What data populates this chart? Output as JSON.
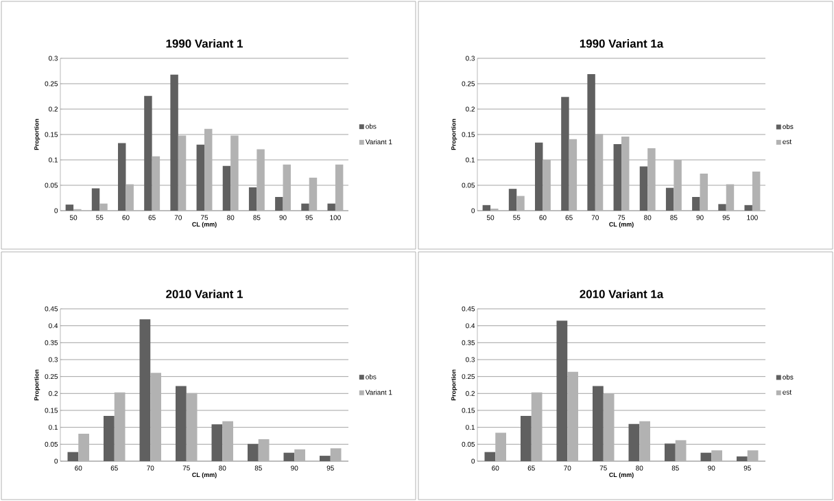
{
  "chart_data": [
    {
      "type": "bar",
      "title": "1990 Variant 1",
      "xlabel": "CL (mm)",
      "ylabel": "Proportion",
      "categories": [
        "50",
        "55",
        "60",
        "65",
        "70",
        "75",
        "80",
        "85",
        "90",
        "95",
        "100"
      ],
      "series": [
        {
          "name": "obs",
          "color": "#606060",
          "values": [
            0.012,
            0.044,
            0.133,
            0.226,
            0.268,
            0.13,
            0.088,
            0.046,
            0.027,
            0.014,
            0.014
          ]
        },
        {
          "name": "Variant 1",
          "color": "#b2b2b2",
          "values": [
            0.003,
            0.014,
            0.052,
            0.107,
            0.148,
            0.161,
            0.148,
            0.121,
            0.091,
            0.065,
            0.091
          ]
        }
      ],
      "ylim": [
        0,
        0.3
      ],
      "yticks": [
        0,
        0.05,
        0.1,
        0.15,
        0.2,
        0.25,
        0.3
      ],
      "grid": "y",
      "legend": "right"
    },
    {
      "type": "bar",
      "title": "1990 Variant 1a",
      "xlabel": "CL (mm)",
      "ylabel": "Proportion",
      "categories": [
        "50",
        "55",
        "60",
        "65",
        "70",
        "75",
        "80",
        "85",
        "90",
        "95",
        "100"
      ],
      "series": [
        {
          "name": "obs",
          "color": "#606060",
          "values": [
            0.011,
            0.043,
            0.134,
            0.224,
            0.269,
            0.131,
            0.087,
            0.045,
            0.027,
            0.013,
            0.011
          ]
        },
        {
          "name": "est",
          "color": "#b2b2b2",
          "values": [
            0.004,
            0.029,
            0.1,
            0.141,
            0.151,
            0.146,
            0.123,
            0.1,
            0.073,
            0.052,
            0.077
          ]
        }
      ],
      "ylim": [
        0,
        0.3
      ],
      "yticks": [
        0,
        0.05,
        0.1,
        0.15,
        0.2,
        0.25,
        0.3
      ],
      "grid": "y",
      "legend": "right"
    },
    {
      "type": "bar",
      "title": "2010 Variant 1",
      "xlabel": "CL (mm)",
      "ylabel": "Proportion",
      "categories": [
        "60",
        "65",
        "70",
        "75",
        "80",
        "85",
        "90",
        "95"
      ],
      "series": [
        {
          "name": "obs",
          "color": "#606060",
          "values": [
            0.027,
            0.134,
            0.419,
            0.222,
            0.109,
            0.051,
            0.025,
            0.016
          ]
        },
        {
          "name": "Variant 1",
          "color": "#b2b2b2",
          "values": [
            0.081,
            0.203,
            0.261,
            0.201,
            0.118,
            0.065,
            0.035,
            0.038
          ]
        }
      ],
      "ylim": [
        0,
        0.45
      ],
      "yticks": [
        0,
        0.05,
        0.1,
        0.15,
        0.2,
        0.25,
        0.3,
        0.35,
        0.4,
        0.45
      ],
      "grid": "y",
      "legend": "right"
    },
    {
      "type": "bar",
      "title": "2010 Variant 1a",
      "xlabel": "CL (mm)",
      "ylabel": "Proportion",
      "categories": [
        "60",
        "65",
        "70",
        "75",
        "80",
        "85",
        "90",
        "95"
      ],
      "series": [
        {
          "name": "obs",
          "color": "#606060",
          "values": [
            0.027,
            0.134,
            0.415,
            0.222,
            0.11,
            0.052,
            0.025,
            0.014
          ]
        },
        {
          "name": "est",
          "color": "#b2b2b2",
          "values": [
            0.084,
            0.203,
            0.264,
            0.199,
            0.118,
            0.062,
            0.032,
            0.032
          ]
        }
      ],
      "ylim": [
        0,
        0.45
      ],
      "yticks": [
        0,
        0.05,
        0.1,
        0.15,
        0.2,
        0.25,
        0.3,
        0.35,
        0.4,
        0.45
      ],
      "grid": "y",
      "legend": "right"
    }
  ]
}
